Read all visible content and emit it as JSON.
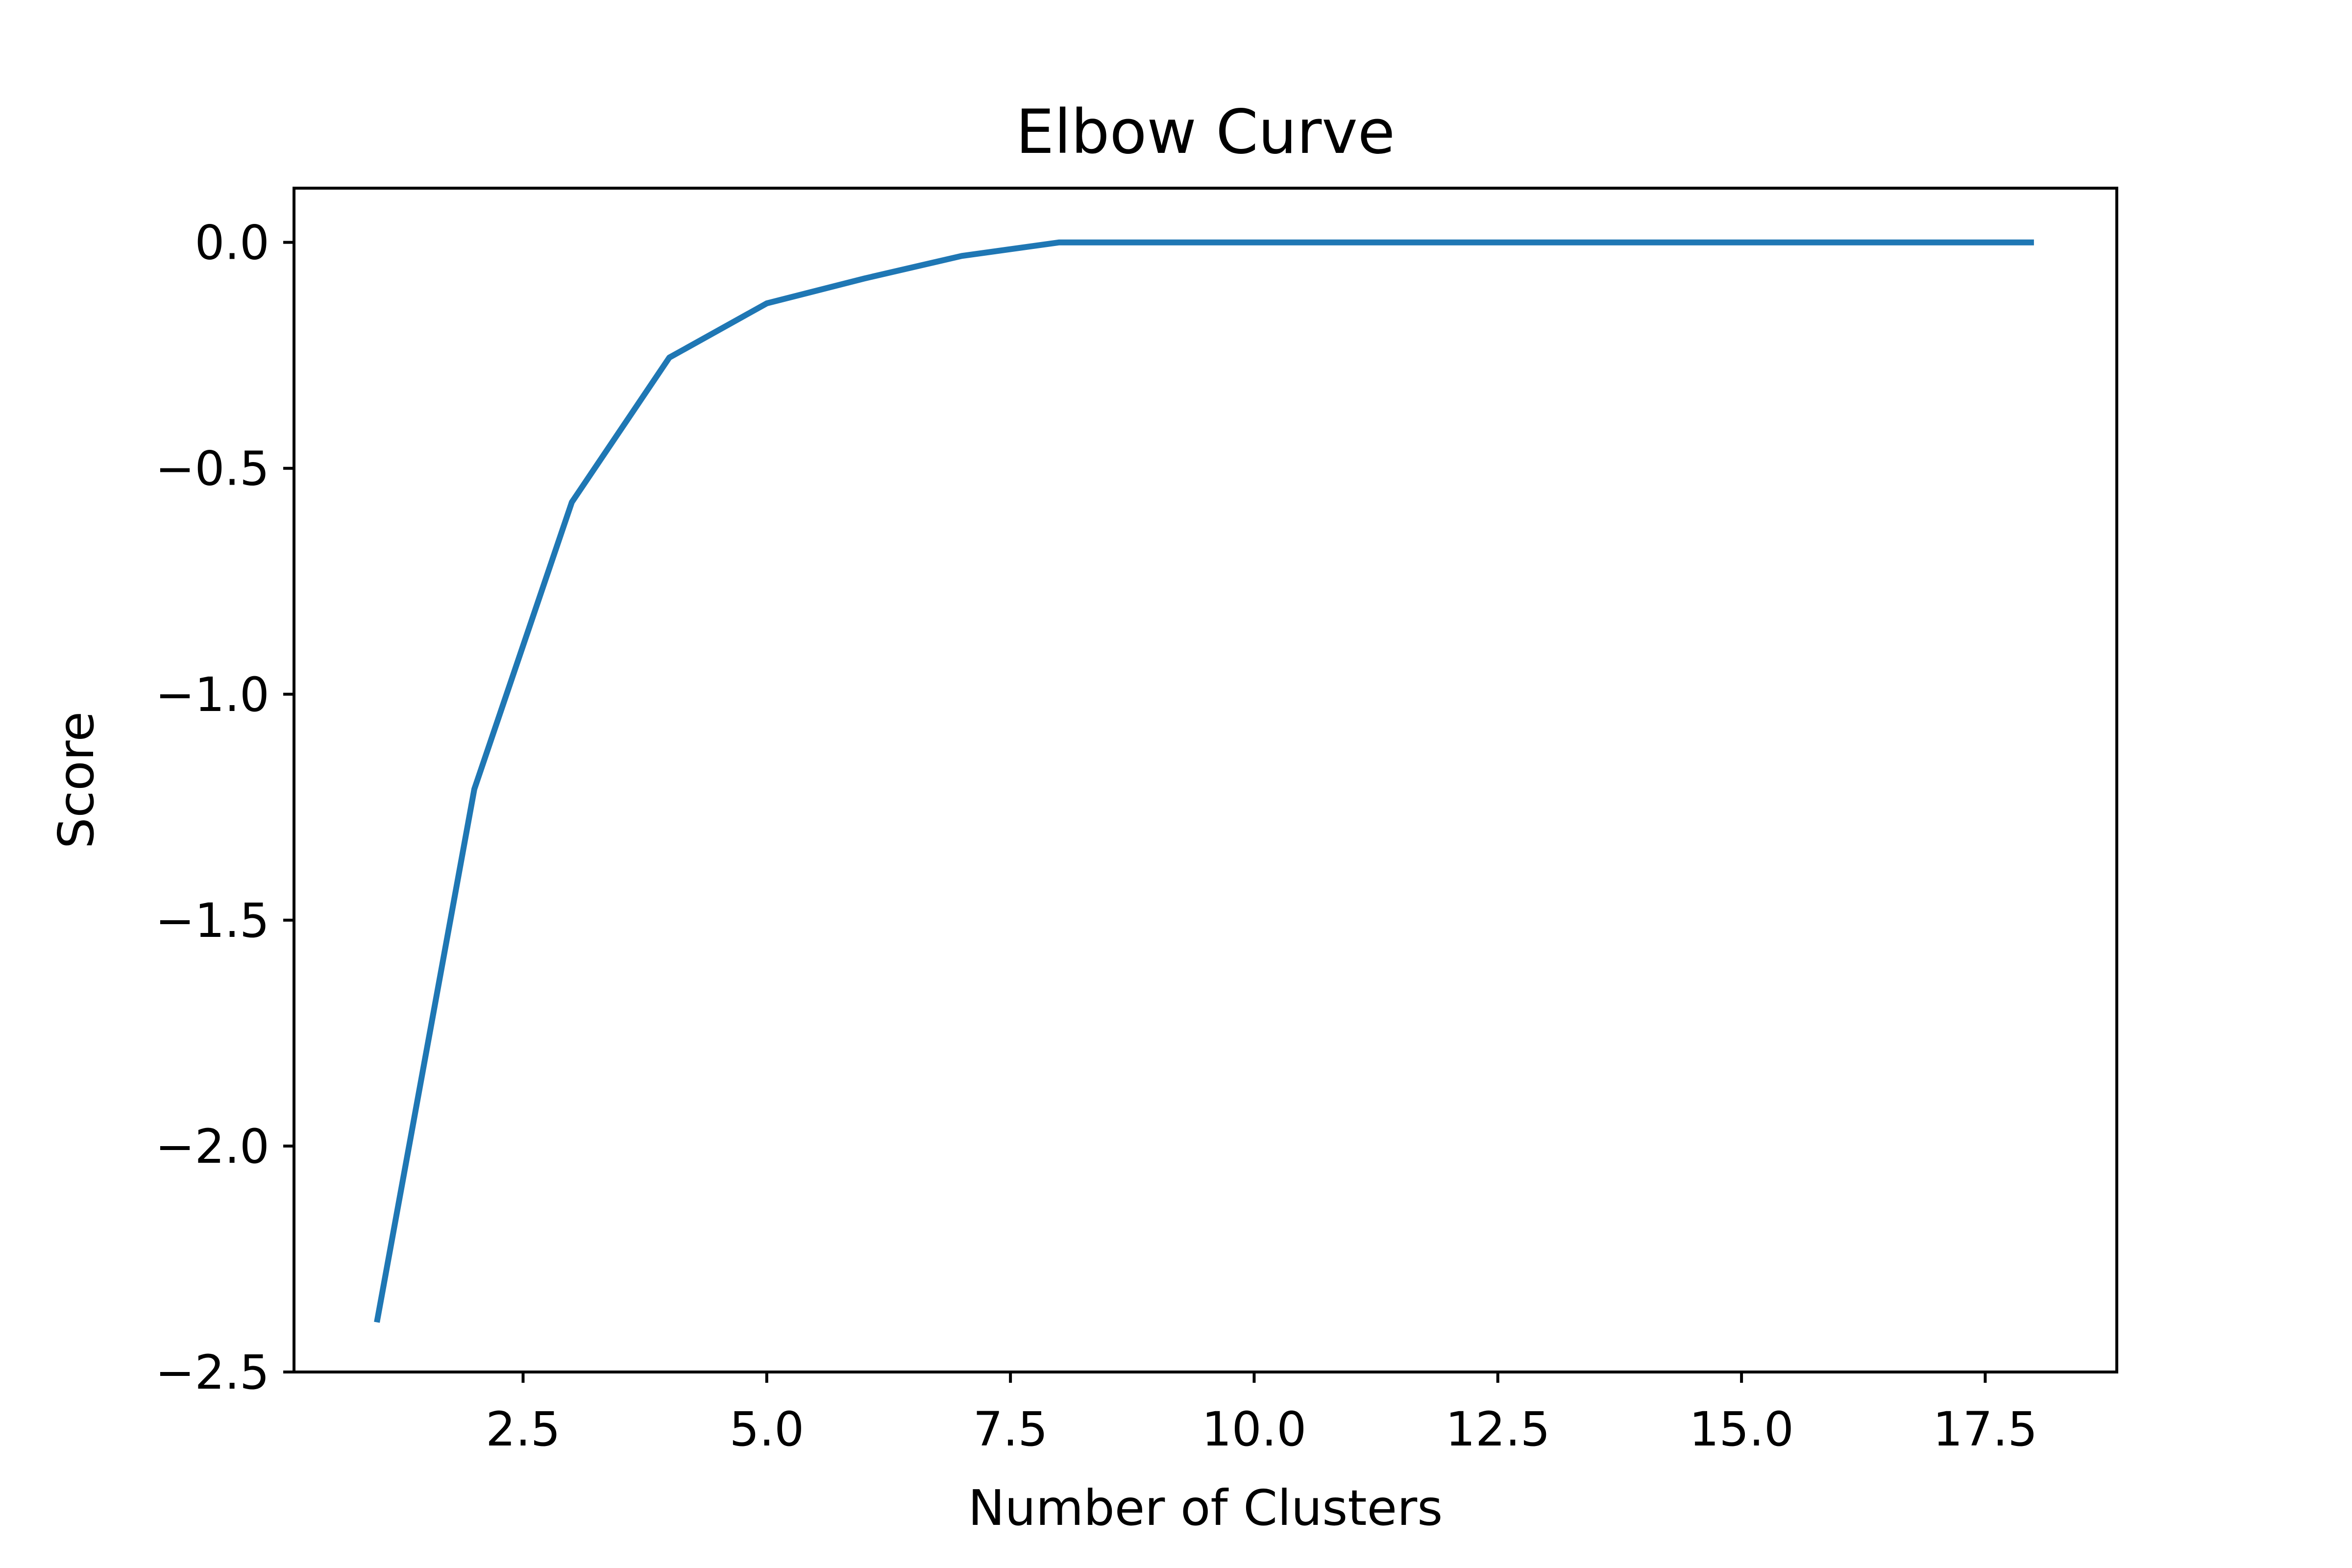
{
  "chart_data": {
    "type": "line",
    "title": "Elbow Curve",
    "xlabel": "Number of Clusters",
    "ylabel": "Score",
    "xlim": [
      0.15,
      18.85
    ],
    "ylim": [
      -2.5,
      0.12
    ],
    "xticks": [
      2.5,
      5.0,
      7.5,
      10.0,
      12.5,
      15.0,
      17.5
    ],
    "xtick_labels": [
      "2.5",
      "5.0",
      "7.5",
      "10.0",
      "12.5",
      "15.0",
      "17.5"
    ],
    "yticks": [
      0.0,
      -0.5,
      -1.0,
      -1.5,
      -2.0,
      -2.5
    ],
    "ytick_labels": [
      "0.0",
      "−0.5",
      "−1.0",
      "−1.5",
      "−2.0",
      "−2.5"
    ],
    "grid": false,
    "series": [
      {
        "color": "#1f77b4",
        "x": [
          1,
          2,
          3,
          4,
          5,
          6,
          7,
          8,
          9,
          10,
          11,
          12,
          13,
          14,
          15,
          16,
          17,
          18
        ],
        "y": [
          -2.39,
          -1.21,
          -0.575,
          -0.255,
          -0.135,
          -0.08,
          -0.03,
          0.0,
          0.0,
          0.0,
          0.0,
          0.0,
          0.0,
          0.0,
          0.0,
          0.0,
          0.0,
          0.0
        ]
      }
    ]
  }
}
